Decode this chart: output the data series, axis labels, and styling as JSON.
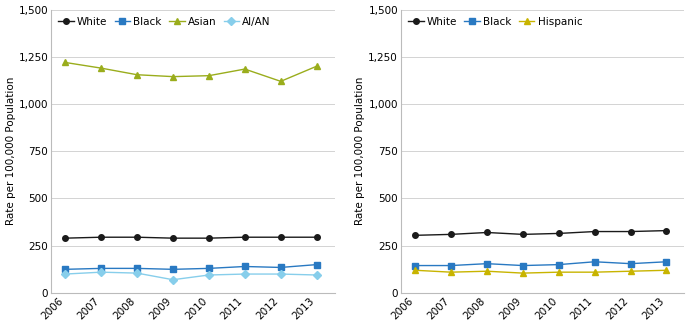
{
  "years": [
    2006,
    2007,
    2008,
    2009,
    2010,
    2011,
    2012,
    2013
  ],
  "left": {
    "White": [
      290,
      295,
      295,
      290,
      290,
      295,
      295,
      295
    ],
    "Black": [
      125,
      130,
      130,
      125,
      130,
      140,
      135,
      150
    ],
    "Asian": [
      1220,
      1190,
      1155,
      1145,
      1150,
      1185,
      1120,
      1200
    ],
    "AI/AN": [
      100,
      110,
      105,
      70,
      95,
      100,
      100,
      95
    ]
  },
  "right": {
    "White": [
      305,
      310,
      320,
      310,
      315,
      325,
      325,
      330
    ],
    "Black": [
      145,
      145,
      155,
      145,
      150,
      165,
      155,
      165
    ],
    "Hispanic": [
      120,
      110,
      115,
      105,
      110,
      110,
      115,
      120
    ]
  },
  "colors": {
    "White": "#1a1a1a",
    "Black": "#2979c2",
    "Asian": "#9aad1c",
    "AI/AN": "#87ceeb",
    "Hispanic": "#c8b400"
  },
  "markers": {
    "White": "o",
    "Black": "s",
    "Asian": "^",
    "AI/AN": "D",
    "Hispanic": "^"
  },
  "marker_sizes": {
    "White": 4,
    "Black": 4,
    "Asian": 5,
    "AI/AN": 4,
    "Hispanic": 5
  },
  "ylabel": "Rate per 100,000 Population",
  "ylim": [
    0,
    1500
  ],
  "yticks": [
    0,
    250,
    500,
    750,
    1000,
    1250,
    1500
  ],
  "ytick_labels": [
    "0",
    "250",
    "500",
    "750",
    "1,000",
    "1,250",
    "1,500"
  ]
}
